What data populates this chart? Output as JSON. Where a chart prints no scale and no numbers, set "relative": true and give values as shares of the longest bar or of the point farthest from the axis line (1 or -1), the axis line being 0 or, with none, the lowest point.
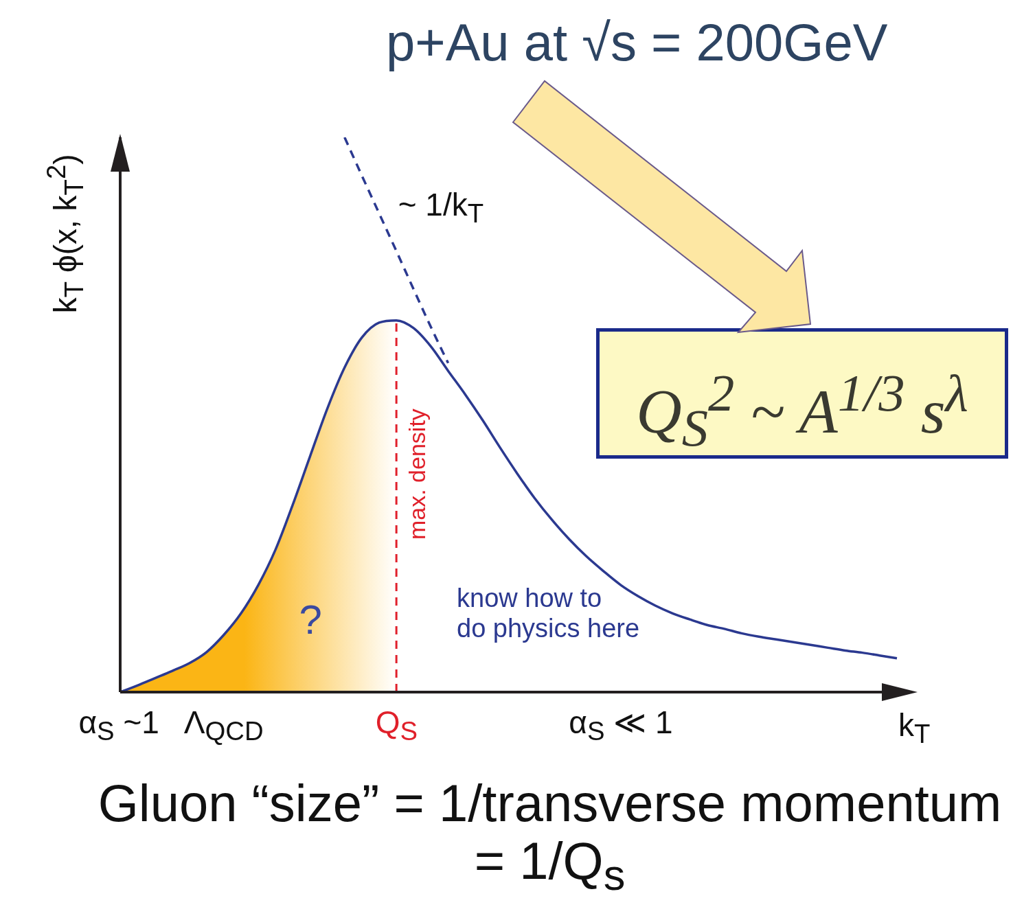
{
  "chart_data": {
    "type": "line",
    "relative": true,
    "title": "p+Au at √s = 200GeV",
    "xlabel": "k$_{T}$",
    "ylabel": "k$_{T}$ ϕ(x, k$_{T}$$^{2}$)",
    "categories": [
      "α$_{S}$ ~1",
      null,
      null,
      null,
      null,
      null,
      "Λ$_{QCD}$",
      null,
      null,
      null,
      null,
      null,
      null,
      null,
      null,
      null,
      "Q$_{S}$",
      null,
      null,
      null,
      null,
      null,
      null,
      null,
      null,
      null,
      null,
      null,
      null,
      "α$_{S}$ ≪ 1",
      null,
      null,
      null,
      null,
      null,
      null,
      null,
      null,
      null,
      null,
      null,
      null,
      null,
      null,
      null,
      null
    ],
    "series": [
      {
        "type": "area",
        "color": "#fbb515",
        "values": [
          0,
          0.012,
          0.025,
          0.038,
          0.052,
          0.072,
          0.103,
          0.142,
          0.193,
          0.257,
          0.338,
          0.425,
          0.511,
          0.585,
          0.639,
          0.666,
          0.67,
          null,
          null,
          null,
          null,
          null,
          null,
          null,
          null,
          null,
          null,
          null,
          null,
          null,
          null,
          null,
          null,
          null,
          null,
          null,
          null,
          null,
          null,
          null,
          null,
          null,
          null,
          null,
          null,
          null
        ]
      },
      {
        "color": "#2b3990",
        "values": [
          0,
          0.012,
          0.025,
          0.038,
          0.052,
          0.072,
          0.103,
          0.142,
          0.193,
          0.257,
          0.338,
          0.425,
          0.511,
          0.585,
          0.639,
          0.666,
          0.67,
          0.656,
          0.623,
          0.579,
          0.536,
          0.49,
          0.441,
          0.394,
          0.35,
          0.311,
          0.276,
          0.245,
          0.218,
          0.193,
          0.173,
          0.156,
          0.142,
          0.131,
          0.121,
          0.114,
          0.106,
          0.1,
          0.095,
          0.09,
          0.085,
          0.08,
          0.075,
          0.071,
          0.066,
          0.061
        ]
      },
      {
        "name": "~ 1/k$_{T}$",
        "color": "#2b3990",
        "line_style": "dashed",
        "values": [
          null,
          null,
          null,
          null,
          null,
          null,
          null,
          null,
          null,
          null,
          null,
          null,
          null,
          1,
          0.931,
          0.863,
          0.795,
          0.726,
          0.658,
          0.593,
          null,
          null,
          null,
          null,
          null,
          null,
          null,
          null,
          null,
          null,
          null,
          null,
          null,
          null,
          null,
          null,
          null,
          null,
          null,
          null,
          null,
          null,
          null,
          null,
          null,
          null
        ]
      }
    ],
    "ref_lines": [
      {
        "axis": "x",
        "value": "Q$_{S}$",
        "label": "max. density",
        "color": "#e0202a",
        "line_style": "dashed"
      }
    ],
    "annotations": [
      "?",
      "know how to\ndo physics here",
      "Q$_{S}$$^{2}$ ~ A$^{1/3}$ s$^{λ}$",
      "Gluon “size” = 1/transverse momentum\n= 1/Q$_{s}$"
    ],
    "legend": false,
    "marker": "none"
  }
}
